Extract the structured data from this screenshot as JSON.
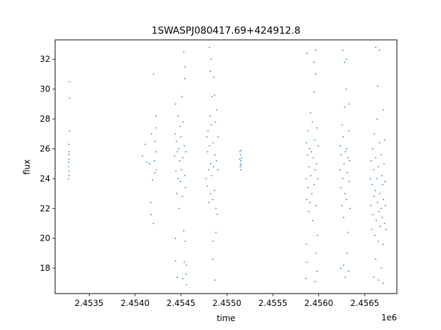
{
  "chart_data": {
    "type": "scatter",
    "title": "1SWASPJ080417.69+424912.8",
    "xlabel": "time",
    "ylabel": "flux",
    "x_offset_label": "1e6",
    "xlim": [
      2453130,
      2456850
    ],
    "ylim": [
      16.3,
      33.3
    ],
    "xticks": [
      2453500,
      2454000,
      2454500,
      2455000,
      2455500,
      2456000,
      2456500
    ],
    "xtick_labels": [
      "2.4535",
      "2.4540",
      "2.4545",
      "2.4550",
      "2.4555",
      "2.4560",
      "2.4565"
    ],
    "yticks": [
      18,
      20,
      22,
      24,
      26,
      28,
      30,
      32
    ],
    "ytick_labels": [
      "18",
      "20",
      "22",
      "24",
      "26",
      "28",
      "30",
      "32"
    ],
    "grid": false,
    "legend": "none",
    "marker_color": "#1f77b4",
    "series": [
      {
        "points": [
          [
            2453275,
            24.0
          ],
          [
            2453276,
            25.1
          ],
          [
            2453277,
            25.6
          ],
          [
            2453278,
            24.8
          ],
          [
            2453279,
            26.3
          ],
          [
            2453280,
            24.5
          ],
          [
            2453281,
            25.3
          ],
          [
            2453282,
            24.2
          ],
          [
            2453283,
            25.8
          ],
          [
            2453284,
            30.5
          ],
          [
            2453285,
            29.4
          ],
          [
            2453286,
            27.2
          ],
          [
            2454080,
            25.5
          ],
          [
            2454110,
            26.3
          ],
          [
            2454130,
            25.1
          ],
          [
            2454160,
            25.0
          ],
          [
            2454170,
            22.4
          ],
          [
            2454175,
            21.6
          ],
          [
            2454190,
            23.9
          ],
          [
            2454200,
            21.0
          ],
          [
            2454210,
            25.2
          ],
          [
            2454215,
            24.4
          ],
          [
            2454220,
            26.5
          ],
          [
            2454225,
            27.4
          ],
          [
            2454228,
            28.2
          ],
          [
            2454230,
            25.8
          ],
          [
            2454232,
            24.6
          ],
          [
            2454200,
            31.0
          ],
          [
            2454180,
            27.0
          ],
          [
            2454430,
            25.5
          ],
          [
            2454435,
            27.0
          ],
          [
            2454440,
            29.0
          ],
          [
            2454445,
            24.5
          ],
          [
            2454450,
            26.5
          ],
          [
            2454455,
            23.0
          ],
          [
            2454460,
            25.8
          ],
          [
            2454465,
            28.2
          ],
          [
            2454470,
            24.0
          ],
          [
            2454475,
            26.0
          ],
          [
            2454480,
            22.0
          ],
          [
            2454485,
            25.2
          ],
          [
            2454490,
            27.5
          ],
          [
            2454495,
            23.8
          ],
          [
            2454500,
            26.8
          ],
          [
            2454505,
            24.6
          ],
          [
            2454510,
            29.5
          ],
          [
            2454515,
            22.8
          ],
          [
            2454520,
            25.4
          ],
          [
            2454525,
            27.8
          ],
          [
            2454530,
            20.5
          ],
          [
            2454535,
            26.2
          ],
          [
            2454540,
            24.2
          ],
          [
            2454545,
            31.5
          ],
          [
            2454550,
            23.4
          ],
          [
            2454555,
            25.8
          ],
          [
            2454560,
            18.2
          ],
          [
            2454440,
            18.5
          ],
          [
            2454460,
            17.4
          ],
          [
            2454520,
            17.3
          ],
          [
            2454545,
            19.8
          ],
          [
            2454555,
            17.6
          ],
          [
            2454560,
            16.9
          ],
          [
            2454530,
            32.5
          ],
          [
            2454540,
            30.7
          ],
          [
            2454440,
            20.0
          ],
          [
            2454535,
            18.4
          ],
          [
            2454775,
            24.0
          ],
          [
            2454780,
            26.8
          ],
          [
            2454785,
            23.5
          ],
          [
            2454790,
            25.8
          ],
          [
            2454795,
            27.2
          ],
          [
            2454800,
            24.6
          ],
          [
            2454805,
            22.4
          ],
          [
            2454810,
            26.2
          ],
          [
            2454815,
            28.2
          ],
          [
            2454820,
            23.0
          ],
          [
            2454825,
            25.0
          ],
          [
            2454830,
            27.6
          ],
          [
            2454835,
            24.2
          ],
          [
            2454840,
            29.5
          ],
          [
            2454845,
            22.6
          ],
          [
            2454850,
            26.4
          ],
          [
            2454855,
            24.8
          ],
          [
            2454860,
            30.8
          ],
          [
            2454865,
            23.2
          ],
          [
            2454870,
            25.6
          ],
          [
            2454875,
            27.8
          ],
          [
            2454880,
            22.0
          ],
          [
            2454885,
            25.2
          ],
          [
            2454890,
            28.6
          ],
          [
            2454895,
            21.6
          ],
          [
            2454900,
            24.6
          ],
          [
            2454905,
            26.8
          ],
          [
            2454810,
            32.8
          ],
          [
            2454830,
            32.0
          ],
          [
            2454850,
            19.8
          ],
          [
            2454870,
            17.2
          ],
          [
            2454845,
            18.6
          ],
          [
            2454880,
            20.4
          ],
          [
            2454820,
            31.2
          ],
          [
            2454865,
            29.6
          ],
          [
            2455140,
            25.3
          ],
          [
            2455142,
            25.8
          ],
          [
            2455144,
            24.8
          ],
          [
            2455146,
            25.0
          ],
          [
            2455148,
            25.6
          ],
          [
            2455150,
            24.6
          ],
          [
            2455152,
            25.2
          ],
          [
            2455154,
            25.9
          ],
          [
            2455156,
            24.9
          ],
          [
            2455158,
            25.4
          ],
          [
            2455860,
            24.0
          ],
          [
            2455865,
            26.4
          ],
          [
            2455870,
            22.6
          ],
          [
            2455875,
            25.6
          ],
          [
            2455880,
            23.4
          ],
          [
            2455885,
            27.2
          ],
          [
            2455890,
            21.8
          ],
          [
            2455895,
            24.8
          ],
          [
            2455900,
            26.0
          ],
          [
            2455905,
            22.4
          ],
          [
            2455910,
            28.4
          ],
          [
            2455915,
            24.2
          ],
          [
            2455920,
            25.8
          ],
          [
            2455925,
            23.0
          ],
          [
            2455930,
            27.8
          ],
          [
            2455935,
            21.2
          ],
          [
            2455940,
            25.4
          ],
          [
            2455945,
            29.8
          ],
          [
            2455950,
            23.6
          ],
          [
            2455955,
            26.6
          ],
          [
            2455960,
            24.6
          ],
          [
            2455965,
            31.0
          ],
          [
            2455970,
            22.2
          ],
          [
            2455975,
            25.0
          ],
          [
            2455980,
            27.4
          ],
          [
            2455985,
            20.2
          ],
          [
            2455990,
            24.0
          ],
          [
            2455995,
            26.2
          ],
          [
            2455860,
            17.3
          ],
          [
            2455865,
            19.6
          ],
          [
            2455870,
            18.4
          ],
          [
            2455960,
            17.1
          ],
          [
            2455970,
            19.0
          ],
          [
            2455980,
            17.8
          ],
          [
            2455965,
            32.6
          ],
          [
            2455870,
            32.4
          ],
          [
            2455950,
            31.8
          ],
          [
            2456230,
            24.6
          ],
          [
            2456235,
            26.2
          ],
          [
            2456240,
            23.4
          ],
          [
            2456245,
            25.6
          ],
          [
            2456250,
            22.2
          ],
          [
            2456255,
            27.6
          ],
          [
            2456260,
            24.0
          ],
          [
            2456265,
            26.8
          ],
          [
            2456270,
            21.4
          ],
          [
            2456275,
            25.0
          ],
          [
            2456280,
            28.8
          ],
          [
            2456285,
            23.0
          ],
          [
            2456290,
            25.8
          ],
          [
            2456295,
            30.0
          ],
          [
            2456300,
            22.6
          ],
          [
            2456305,
            26.0
          ],
          [
            2456310,
            24.4
          ],
          [
            2456315,
            20.4
          ],
          [
            2456320,
            25.4
          ],
          [
            2456325,
            27.2
          ],
          [
            2456330,
            23.8
          ],
          [
            2456335,
            25.2
          ],
          [
            2456340,
            22.0
          ],
          [
            2456260,
            32.6
          ],
          [
            2456280,
            31.8
          ],
          [
            2456300,
            32.0
          ],
          [
            2456270,
            18.2
          ],
          [
            2456290,
            17.4
          ],
          [
            2456310,
            19.0
          ],
          [
            2456325,
            17.8
          ],
          [
            2456240,
            18.0
          ],
          [
            2456330,
            29.0
          ],
          [
            2456560,
            24.0
          ],
          [
            2456565,
            22.2
          ],
          [
            2456570,
            25.2
          ],
          [
            2456575,
            20.6
          ],
          [
            2456580,
            23.6
          ],
          [
            2456585,
            26.0
          ],
          [
            2456590,
            21.6
          ],
          [
            2456595,
            24.6
          ],
          [
            2456600,
            22.8
          ],
          [
            2456605,
            27.0
          ],
          [
            2456610,
            20.2
          ],
          [
            2456615,
            23.2
          ],
          [
            2456620,
            25.4
          ],
          [
            2456625,
            21.2
          ],
          [
            2456630,
            24.0
          ],
          [
            2456635,
            28.0
          ],
          [
            2456640,
            22.4
          ],
          [
            2456645,
            19.8
          ],
          [
            2456650,
            24.8
          ],
          [
            2456655,
            21.8
          ],
          [
            2456660,
            26.4
          ],
          [
            2456665,
            23.0
          ],
          [
            2456670,
            20.8
          ],
          [
            2456675,
            25.6
          ],
          [
            2456680,
            22.0
          ],
          [
            2456685,
            24.2
          ],
          [
            2456690,
            21.4
          ],
          [
            2456695,
            23.6
          ],
          [
            2456700,
            19.6
          ],
          [
            2456705,
            22.6
          ],
          [
            2456710,
            25.0
          ],
          [
            2456715,
            21.0
          ],
          [
            2456720,
            23.8
          ],
          [
            2456725,
            22.2
          ],
          [
            2456730,
            20.6
          ],
          [
            2456620,
            32.8
          ],
          [
            2456660,
            32.6
          ],
          [
            2456640,
            30.2
          ],
          [
            2456600,
            17.4
          ],
          [
            2456650,
            17.2
          ],
          [
            2456700,
            17.0
          ],
          [
            2456620,
            18.6
          ],
          [
            2456680,
            18.0
          ],
          [
            2456700,
            28.6
          ],
          [
            2456720,
            26.6
          ]
        ]
      }
    ]
  }
}
